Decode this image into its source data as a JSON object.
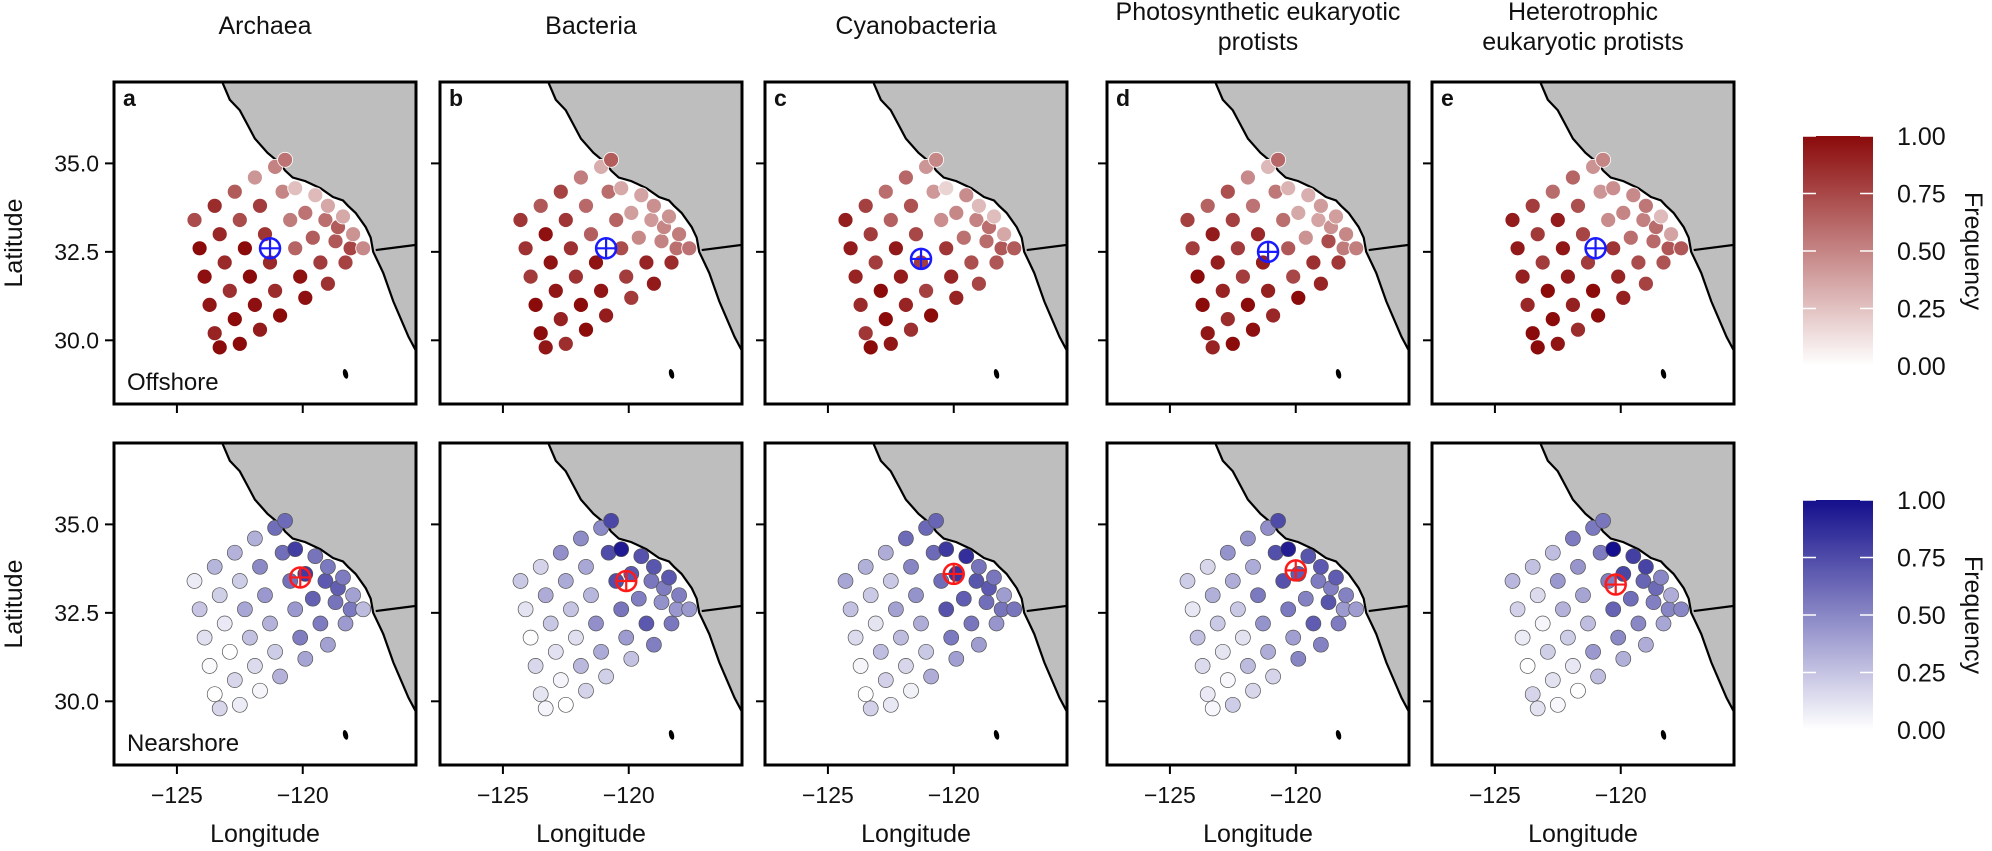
{
  "chart_data": {
    "type": "scatter",
    "subtype": "geographic-small-multiples",
    "xlabel": "Longitude",
    "ylabel": "Latitude",
    "xlim": [
      -127.5,
      -115.5
    ],
    "ylim": [
      28.2,
      37.3
    ],
    "x_ticks": [
      -125,
      -120
    ],
    "x_tick_labels": [
      "−125",
      "−120"
    ],
    "y_ticks": [
      30.0,
      32.5,
      35.0
    ],
    "y_tick_labels": [
      "30.0",
      "32.5",
      "35.0"
    ],
    "columns": [
      {
        "letter": "a",
        "title_lines": [
          "Archaea"
        ]
      },
      {
        "letter": "b",
        "title_lines": [
          "Bacteria"
        ]
      },
      {
        "letter": "c",
        "title_lines": [
          "Cyanobacteria"
        ]
      },
      {
        "letter": "d",
        "title_lines": [
          "Photosynthetic eukaryotic",
          "protists"
        ]
      },
      {
        "letter": "e",
        "title_lines": [
          "Heterotrophic",
          "eukaryotic protists"
        ]
      }
    ],
    "rows": [
      {
        "label": "Offshore",
        "color": "#8b0a0a",
        "marker_color": "#1a1aff",
        "legend_title": "Frequency"
      },
      {
        "label": "Nearshore",
        "color": "#140f8c",
        "marker_color": "#ff1a1a",
        "legend_title": "Frequency"
      }
    ],
    "legend_ticks": [
      0.0,
      0.25,
      0.5,
      0.75,
      1.0
    ],
    "legend_tick_labels": [
      "0.00",
      "0.25",
      "0.50",
      "0.75",
      "1.00"
    ],
    "stations": [
      {
        "x": -124.3,
        "y": 33.4
      },
      {
        "x": -124.1,
        "y": 32.6
      },
      {
        "x": -123.9,
        "y": 31.8
      },
      {
        "x": -123.7,
        "y": 31.0
      },
      {
        "x": -123.5,
        "y": 30.2
      },
      {
        "x": -123.3,
        "y": 29.8
      },
      {
        "x": -123.5,
        "y": 33.8
      },
      {
        "x": -123.3,
        "y": 33.0
      },
      {
        "x": -123.1,
        "y": 32.2
      },
      {
        "x": -122.9,
        "y": 31.4
      },
      {
        "x": -122.7,
        "y": 30.6
      },
      {
        "x": -122.5,
        "y": 29.9
      },
      {
        "x": -122.7,
        "y": 34.2
      },
      {
        "x": -122.5,
        "y": 33.4
      },
      {
        "x": -122.3,
        "y": 32.6
      },
      {
        "x": -122.1,
        "y": 31.8
      },
      {
        "x": -121.9,
        "y": 31.0
      },
      {
        "x": -121.7,
        "y": 30.3
      },
      {
        "x": -121.9,
        "y": 34.6
      },
      {
        "x": -121.7,
        "y": 33.8
      },
      {
        "x": -121.5,
        "y": 33.0
      },
      {
        "x": -121.3,
        "y": 32.2
      },
      {
        "x": -121.1,
        "y": 31.4
      },
      {
        "x": -120.9,
        "y": 30.7
      },
      {
        "x": -121.1,
        "y": 34.9
      },
      {
        "x": -120.8,
        "y": 34.2
      },
      {
        "x": -120.5,
        "y": 33.4
      },
      {
        "x": -120.3,
        "y": 32.6
      },
      {
        "x": -120.1,
        "y": 31.8
      },
      {
        "x": -119.9,
        "y": 31.2
      },
      {
        "x": -120.7,
        "y": 35.1
      },
      {
        "x": -120.3,
        "y": 34.3
      },
      {
        "x": -119.9,
        "y": 33.6
      },
      {
        "x": -119.6,
        "y": 32.9
      },
      {
        "x": -119.3,
        "y": 32.2
      },
      {
        "x": -119.0,
        "y": 31.6
      },
      {
        "x": -119.5,
        "y": 34.1
      },
      {
        "x": -119.1,
        "y": 33.4
      },
      {
        "x": -118.7,
        "y": 32.8
      },
      {
        "x": -118.3,
        "y": 32.2
      },
      {
        "x": -119.0,
        "y": 33.8
      },
      {
        "x": -118.6,
        "y": 33.2
      },
      {
        "x": -118.1,
        "y": 32.6
      },
      {
        "x": -118.4,
        "y": 33.5
      },
      {
        "x": -118.0,
        "y": 33.0
      },
      {
        "x": -117.6,
        "y": 32.6
      }
    ],
    "offshore_frequency_base": [
      0.85,
      0.92,
      0.95,
      0.98,
      0.99,
      1.0,
      0.8,
      0.88,
      0.93,
      0.97,
      0.99,
      1.0,
      0.7,
      0.82,
      0.9,
      0.95,
      0.98,
      0.99,
      0.55,
      0.7,
      0.8,
      0.9,
      0.95,
      0.98,
      0.45,
      0.5,
      0.6,
      0.75,
      0.88,
      0.95,
      0.6,
      0.35,
      0.45,
      0.6,
      0.8,
      0.9,
      0.4,
      0.5,
      0.65,
      0.8,
      0.45,
      0.55,
      0.7,
      0.35,
      0.5,
      0.6
    ],
    "nearshore_frequency_base": [
      0.2,
      0.15,
      0.1,
      0.05,
      0.05,
      0.05,
      0.25,
      0.2,
      0.15,
      0.1,
      0.08,
      0.05,
      0.35,
      0.3,
      0.25,
      0.2,
      0.15,
      0.1,
      0.45,
      0.4,
      0.4,
      0.35,
      0.3,
      0.2,
      0.55,
      0.6,
      0.65,
      0.55,
      0.45,
      0.35,
      0.65,
      0.9,
      0.7,
      0.6,
      0.55,
      0.45,
      0.7,
      0.6,
      0.55,
      0.45,
      0.65,
      0.55,
      0.5,
      0.55,
      0.45,
      0.4
    ],
    "panel_offsets": [
      0.0,
      0.05,
      0.1,
      0.08,
      0.02
    ],
    "offshore_centroids": [
      {
        "x": -121.3,
        "y": 32.6
      },
      {
        "x": -120.9,
        "y": 32.6
      },
      {
        "x": -121.3,
        "y": 32.3
      },
      {
        "x": -121.1,
        "y": 32.5
      },
      {
        "x": -121.0,
        "y": 32.6
      }
    ],
    "nearshore_centroids": [
      {
        "x": -120.1,
        "y": 33.5
      },
      {
        "x": -120.1,
        "y": 33.4
      },
      {
        "x": -120.0,
        "y": 33.6
      },
      {
        "x": -120.0,
        "y": 33.7
      },
      {
        "x": -120.2,
        "y": 33.3
      }
    ]
  }
}
